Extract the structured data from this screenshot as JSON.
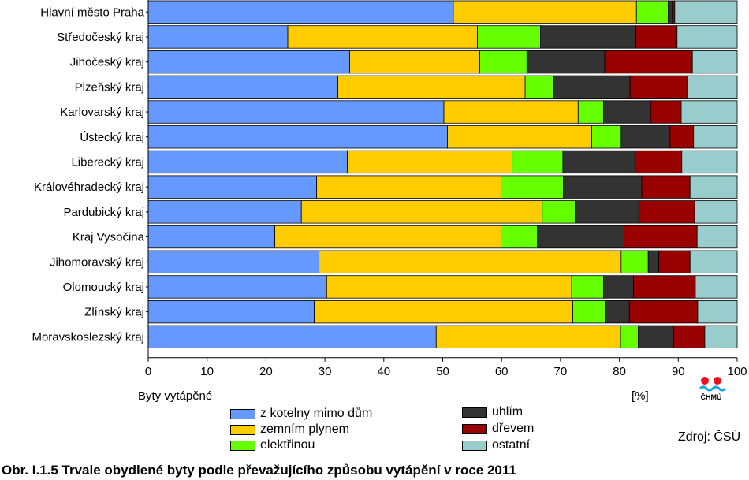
{
  "chart_data": {
    "type": "bar",
    "orientation": "horizontal",
    "stacked": true,
    "categories": [
      "Hlavní město Praha",
      "Středočeský kraj",
      "Jihočeský kraj",
      "Plzeňský kraj",
      "Karlovarský kraj",
      "Ústecký kraj",
      "Liberecký kraj",
      "Královéhradecký kraj",
      "Pardubický kraj",
      "Kraj Vysočina",
      "Jihomoravský kraj",
      "Olomoucký kraj",
      "Zlínský kraj",
      "Moravskoslezský kraj"
    ],
    "series": [
      {
        "name": "z kotelny mimo dům",
        "color": "#6699ff",
        "values": [
          51.8,
          23.7,
          34.2,
          32.2,
          50.2,
          50.8,
          33.8,
          28.6,
          26.0,
          21.5,
          29.0,
          30.3,
          28.2,
          48.9
        ]
      },
      {
        "name": "zemním plynem",
        "color": "#ffcc00",
        "values": [
          31.1,
          32.2,
          22.1,
          31.8,
          22.8,
          24.5,
          28.0,
          31.3,
          40.9,
          38.4,
          51.3,
          41.6,
          43.9,
          31.3
        ]
      },
      {
        "name": "elektřinou",
        "color": "#66ff00",
        "values": [
          5.4,
          10.7,
          8.0,
          4.8,
          4.3,
          5.0,
          8.6,
          10.6,
          5.6,
          6.2,
          4.6,
          5.4,
          5.5,
          3.0
        ]
      },
      {
        "name": "uhlím",
        "color": "#333333",
        "values": [
          0.7,
          16.2,
          13.2,
          13.0,
          8.0,
          8.3,
          12.3,
          13.3,
          10.8,
          14.7,
          1.8,
          5.1,
          4.1,
          6.0
        ]
      },
      {
        "name": "dřevem",
        "color": "#990000",
        "values": [
          0.4,
          7.0,
          14.9,
          9.8,
          5.2,
          4.0,
          7.9,
          8.2,
          9.5,
          12.4,
          5.3,
          10.5,
          11.6,
          5.3
        ]
      },
      {
        "name": "ostatní",
        "color": "#99cccc",
        "values": [
          10.6,
          10.2,
          7.6,
          8.4,
          9.5,
          7.4,
          9.4,
          8.0,
          7.2,
          6.8,
          8.0,
          7.1,
          6.7,
          5.5
        ]
      }
    ],
    "xlim": [
      0,
      100
    ],
    "xticks": [
      "0",
      "10",
      "20",
      "30",
      "40",
      "50",
      "60",
      "70",
      "80",
      "90",
      "100"
    ],
    "xlabel_left": "Byty vytápěné",
    "xlabel_unit": "[%]",
    "legend_placement": "bottom",
    "grid": false
  },
  "source_text": "Zdroj: ČSÚ",
  "logo_text": "ČHMÚ",
  "caption": "Obr. I.1.5  Trvale obydlené byty podle převažujícího způsobu vytápění v roce 2011"
}
